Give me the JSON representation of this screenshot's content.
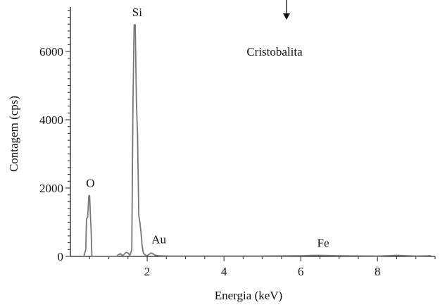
{
  "chart_data": {
    "type": "line",
    "title": "",
    "annotation": "Cristobalita",
    "xlabel": "Energia (keV)",
    "ylabel": "Contagem (cps)",
    "xlim": [
      0,
      9.5
    ],
    "ylim": [
      0,
      7300
    ],
    "xticks": [
      2,
      4,
      6,
      8
    ],
    "yticks": [
      0,
      2000,
      4000,
      6000
    ],
    "grid": false,
    "peak_labels": [
      {
        "text": "O",
        "x": 0.52,
        "y": 1780
      },
      {
        "text": "Si",
        "x": 1.74,
        "y": 6780
      },
      {
        "text": "Au",
        "x": 2.12,
        "y": 90
      },
      {
        "text": "Fe",
        "x": 6.4,
        "y": 30
      }
    ],
    "series": [
      {
        "x": [
          0.3,
          0.35,
          0.4,
          0.42,
          0.45,
          0.48,
          0.5,
          0.52,
          0.54,
          0.56,
          0.58,
          0.6,
          0.65,
          0.7,
          0.8,
          0.9,
          1.0,
          1.1,
          1.2,
          1.25,
          1.3,
          1.35,
          1.4,
          1.45,
          1.5,
          1.55,
          1.6,
          1.63,
          1.66,
          1.69,
          1.72,
          1.75,
          1.78,
          1.81,
          1.84,
          1.87,
          1.9,
          1.95,
          2.0,
          2.05,
          2.1,
          2.15,
          2.2,
          2.3,
          2.5,
          3.0,
          4.0,
          5.0,
          6.0,
          6.4,
          7.0,
          8.0,
          8.5,
          9.0,
          9.4
        ],
        "y": [
          0,
          0,
          200,
          1100,
          1150,
          1780,
          1780,
          1200,
          800,
          0,
          0,
          0,
          0,
          0,
          0,
          0,
          0,
          0,
          0,
          50,
          80,
          20,
          60,
          120,
          100,
          30,
          200,
          4500,
          6780,
          6780,
          4500,
          3550,
          1200,
          1000,
          700,
          300,
          100,
          40,
          20,
          60,
          100,
          80,
          40,
          20,
          10,
          10,
          10,
          10,
          20,
          30,
          20,
          10,
          30,
          10,
          20
        ]
      }
    ]
  }
}
